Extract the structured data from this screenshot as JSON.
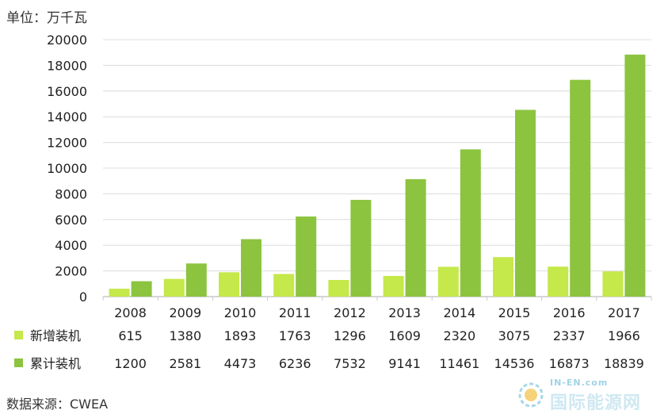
{
  "unit_label": "单位：万千瓦",
  "source_label": "数据来源：CWEA",
  "watermark": {
    "top": "IN-EN.com",
    "main": "国际能源网"
  },
  "colors": {
    "new": "#c5e84a",
    "cumulative": "#8cc43f",
    "gridline": "#dcdcdc",
    "axis": "#c8c8c8"
  },
  "chart_data": {
    "type": "bar",
    "categories": [
      "2008",
      "2009",
      "2010",
      "2011",
      "2012",
      "2013",
      "2014",
      "2015",
      "2016",
      "2017"
    ],
    "series": [
      {
        "name": "新增装机",
        "values": [
          615,
          1380,
          1893,
          1763,
          1296,
          1609,
          2320,
          3075,
          2337,
          1966
        ]
      },
      {
        "name": "累计装机",
        "values": [
          1200,
          2581,
          4473,
          6236,
          7532,
          9141,
          11461,
          14536,
          16873,
          18839
        ]
      }
    ],
    "ylim": [
      0,
      20000
    ],
    "yticks": [
      0,
      2000,
      4000,
      6000,
      8000,
      10000,
      12000,
      14000,
      16000,
      18000,
      20000
    ],
    "grid": true,
    "legend": "bottom-data-table"
  }
}
